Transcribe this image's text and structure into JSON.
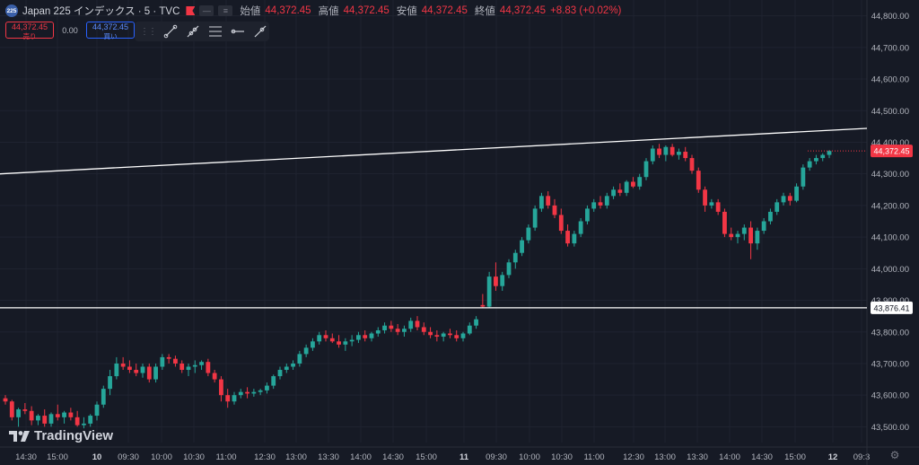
{
  "symbol": {
    "badge": "225",
    "name": "Japan 225 インデックス · 5 · TVC"
  },
  "legend_buttons": [
    "—",
    "≡"
  ],
  "ohlc": {
    "open_label": "始値",
    "open": "44,372.45",
    "high_label": "高値",
    "high": "44,372.45",
    "low_label": "安値",
    "low": "44,372.45",
    "close_label": "終値",
    "close": "44,372.45",
    "change": "+8.83 (+0.02%)"
  },
  "trade": {
    "sell_price": "44,372.45",
    "sell_label": "売り",
    "spread": "0.00",
    "buy_price": "44,372.45",
    "buy_label": "買い"
  },
  "toolbar": {
    "grip_icon": "drag-handle-icon",
    "tools": [
      "trend-line-icon",
      "ray-line-icon",
      "parallel-channel-icon",
      "horizontal-ray-icon",
      "extended-line-icon"
    ]
  },
  "brand": {
    "name": "TradingView"
  },
  "colors": {
    "background": "#161a25",
    "up": "#26a69a",
    "down": "#f23645",
    "grid": "#1f2330",
    "drawing": "#ffffff"
  },
  "chart_data": {
    "type": "candlestick",
    "interval": "5",
    "ylim": [
      43450,
      44850
    ],
    "y_ticks": [
      "44,800.00",
      "44,700.00",
      "44,600.00",
      "44,500.00",
      "44,400.00",
      "44,300.00",
      "44,200.00",
      "44,100.00",
      "44,000.00",
      "43,900.00",
      "43,800.00",
      "43,700.00",
      "43,600.00",
      "43,500.00"
    ],
    "x_ticks": [
      "14:30",
      "15:00",
      "10",
      "09:30",
      "10:00",
      "10:30",
      "11:00",
      "12:30",
      "13:00",
      "13:30",
      "14:00",
      "14:30",
      "15:00",
      "11",
      "09:30",
      "10:00",
      "10:30",
      "11:00",
      "12:30",
      "13:00",
      "13:30",
      "14:00",
      "14:30",
      "15:00",
      "12",
      "09:3"
    ],
    "x_tick_bold": [
      "10",
      "11",
      "12"
    ],
    "last_price": 44372.45,
    "last_price_label": "44,372.45",
    "horizontal_line": {
      "price": 43876.41,
      "label": "43,876.41"
    },
    "trend_line": {
      "start_price": 44300,
      "end_price": 44444
    },
    "candles": [
      [
        43590,
        43600,
        43570,
        43580
      ],
      [
        43580,
        43585,
        43520,
        43530
      ],
      [
        43530,
        43560,
        43500,
        43555
      ],
      [
        43555,
        43575,
        43540,
        43550
      ],
      [
        43550,
        43565,
        43505,
        43520
      ],
      [
        43520,
        43540,
        43505,
        43535
      ],
      [
        43535,
        43555,
        43500,
        43510
      ],
      [
        43510,
        43545,
        43500,
        43540
      ],
      [
        43540,
        43570,
        43520,
        43530
      ],
      [
        43530,
        43550,
        43510,
        43545
      ],
      [
        43545,
        43560,
        43520,
        43530
      ],
      [
        43530,
        43550,
        43500,
        43505
      ],
      [
        43505,
        43530,
        43495,
        43510
      ],
      [
        43510,
        43540,
        43500,
        43535
      ],
      [
        43535,
        43580,
        43520,
        43570
      ],
      [
        43570,
        43630,
        43560,
        43620
      ],
      [
        43620,
        43680,
        43600,
        43660
      ],
      [
        43660,
        43720,
        43650,
        43700
      ],
      [
        43700,
        43720,
        43680,
        43690
      ],
      [
        43690,
        43710,
        43670,
        43680
      ],
      [
        43680,
        43700,
        43660,
        43670
      ],
      [
        43670,
        43700,
        43655,
        43690
      ],
      [
        43690,
        43700,
        43640,
        43650
      ],
      [
        43650,
        43700,
        43640,
        43690
      ],
      [
        43690,
        43730,
        43680,
        43720
      ],
      [
        43720,
        43730,
        43700,
        43715
      ],
      [
        43715,
        43725,
        43690,
        43700
      ],
      [
        43700,
        43710,
        43670,
        43680
      ],
      [
        43680,
        43700,
        43660,
        43690
      ],
      [
        43690,
        43710,
        43670,
        43695
      ],
      [
        43695,
        43710,
        43680,
        43705
      ],
      [
        43705,
        43715,
        43660,
        43670
      ],
      [
        43670,
        43680,
        43640,
        43650
      ],
      [
        43650,
        43660,
        43580,
        43600
      ],
      [
        43600,
        43620,
        43560,
        43580
      ],
      [
        43580,
        43610,
        43570,
        43600
      ],
      [
        43600,
        43620,
        43590,
        43610
      ],
      [
        43610,
        43625,
        43590,
        43605
      ],
      [
        43605,
        43620,
        43595,
        43610
      ],
      [
        43610,
        43620,
        43600,
        43615
      ],
      [
        43615,
        43640,
        43605,
        43630
      ],
      [
        43630,
        43665,
        43620,
        43660
      ],
      [
        43660,
        43690,
        43650,
        43680
      ],
      [
        43680,
        43700,
        43670,
        43690
      ],
      [
        43690,
        43710,
        43680,
        43700
      ],
      [
        43700,
        43740,
        43690,
        43730
      ],
      [
        43730,
        43760,
        43720,
        43750
      ],
      [
        43750,
        43780,
        43740,
        43770
      ],
      [
        43770,
        43800,
        43760,
        43790
      ],
      [
        43790,
        43805,
        43770,
        43780
      ],
      [
        43780,
        43795,
        43765,
        43770
      ],
      [
        43770,
        43790,
        43750,
        43760
      ],
      [
        43760,
        43780,
        43740,
        43770
      ],
      [
        43770,
        43790,
        43755,
        43775
      ],
      [
        43775,
        43800,
        43765,
        43790
      ],
      [
        43790,
        43805,
        43770,
        43780
      ],
      [
        43780,
        43800,
        43770,
        43795
      ],
      [
        43795,
        43815,
        43785,
        43805
      ],
      [
        43805,
        43830,
        43795,
        43820
      ],
      [
        43820,
        43835,
        43800,
        43810
      ],
      [
        43810,
        43825,
        43790,
        43800
      ],
      [
        43800,
        43820,
        43785,
        43810
      ],
      [
        43810,
        43845,
        43800,
        43835
      ],
      [
        43835,
        43850,
        43805,
        43815
      ],
      [
        43815,
        43830,
        43790,
        43800
      ],
      [
        43800,
        43815,
        43780,
        43790
      ],
      [
        43790,
        43805,
        43770,
        43785
      ],
      [
        43785,
        43800,
        43770,
        43795
      ],
      [
        43795,
        43810,
        43780,
        43790
      ],
      [
        43790,
        43805,
        43770,
        43780
      ],
      [
        43780,
        43800,
        43770,
        43795
      ],
      [
        43795,
        43830,
        43790,
        43820
      ],
      [
        43820,
        43850,
        43810,
        43840
      ],
      [
        43885,
        43920,
        43875,
        43880
      ],
      [
        43880,
        43990,
        43875,
        43975
      ],
      [
        43975,
        44020,
        43930,
        43945
      ],
      [
        43945,
        43990,
        43930,
        43980
      ],
      [
        43980,
        44030,
        43970,
        44020
      ],
      [
        44020,
        44060,
        44000,
        44050
      ],
      [
        44050,
        44100,
        44040,
        44090
      ],
      [
        44090,
        44140,
        44080,
        44130
      ],
      [
        44130,
        44200,
        44120,
        44190
      ],
      [
        44190,
        44240,
        44180,
        44230
      ],
      [
        44230,
        44245,
        44190,
        44200
      ],
      [
        44200,
        44220,
        44160,
        44170
      ],
      [
        44170,
        44190,
        44110,
        44120
      ],
      [
        44120,
        44140,
        44070,
        44080
      ],
      [
        44080,
        44120,
        44070,
        44110
      ],
      [
        44110,
        44160,
        44100,
        44150
      ],
      [
        44150,
        44200,
        44140,
        44190
      ],
      [
        44190,
        44220,
        44180,
        44210
      ],
      [
        44210,
        44230,
        44190,
        44200
      ],
      [
        44200,
        44240,
        44190,
        44230
      ],
      [
        44230,
        44260,
        44220,
        44250
      ],
      [
        44250,
        44270,
        44230,
        44240
      ],
      [
        44240,
        44280,
        44230,
        44275
      ],
      [
        44275,
        44290,
        44255,
        44260
      ],
      [
        44260,
        44300,
        44250,
        44290
      ],
      [
        44290,
        44350,
        44280,
        44340
      ],
      [
        44340,
        44390,
        44330,
        44380
      ],
      [
        44380,
        44395,
        44350,
        44360
      ],
      [
        44360,
        44390,
        44340,
        44385
      ],
      [
        44385,
        44395,
        44355,
        44360
      ],
      [
        44360,
        44380,
        44345,
        44370
      ],
      [
        44370,
        44385,
        44340,
        44350
      ],
      [
        44350,
        44360,
        44300,
        44310
      ],
      [
        44310,
        44320,
        44240,
        44250
      ],
      [
        44250,
        44260,
        44180,
        44200
      ],
      [
        44200,
        44220,
        44190,
        44210
      ],
      [
        44210,
        44220,
        44170,
        44180
      ],
      [
        44180,
        44190,
        44100,
        44110
      ],
      [
        44110,
        44130,
        44090,
        44100
      ],
      [
        44100,
        44120,
        44080,
        44110
      ],
      [
        44110,
        44140,
        44090,
        44130
      ],
      [
        44130,
        44150,
        44030,
        44080
      ],
      [
        44080,
        44130,
        44060,
        44120
      ],
      [
        44120,
        44160,
        44110,
        44150
      ],
      [
        44150,
        44190,
        44140,
        44180
      ],
      [
        44180,
        44220,
        44170,
        44210
      ],
      [
        44210,
        44240,
        44200,
        44230
      ],
      [
        44230,
        44240,
        44200,
        44215
      ],
      [
        44215,
        44270,
        44210,
        44260
      ],
      [
        44260,
        44330,
        44250,
        44320
      ],
      [
        44320,
        44350,
        44310,
        44340
      ],
      [
        44340,
        44360,
        44330,
        44350
      ],
      [
        44350,
        44365,
        44340,
        44360
      ],
      [
        44360,
        44375,
        44350,
        44372.45
      ]
    ]
  }
}
